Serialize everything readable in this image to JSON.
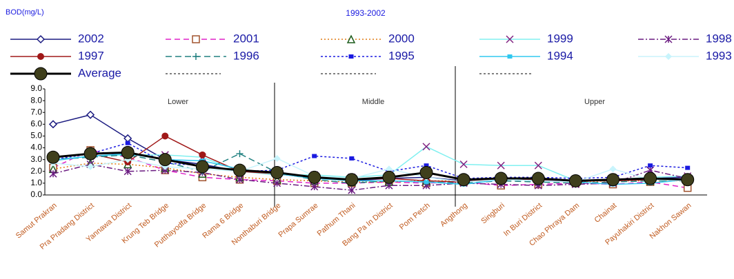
{
  "chart_data": {
    "type": "line",
    "title": "1993-2002",
    "y_label": "BOD(mg/L)",
    "categories": [
      "Samut Prakran",
      "Pra Pradang District",
      "Yannawa District",
      "Krung Teb Bridge",
      "Putthayodfa Bridge",
      "Rama 6 Bridge",
      "Nonthaburi Bridge",
      "Prapa Sumrae",
      "Pathum Thani",
      "Bang Pa In District",
      "Pom Petch",
      "Angthong",
      "Singburi",
      "In Buri District",
      "Chao Phraya Dam",
      "Chainat",
      "Payuhakiri District",
      "Nakhon Sawan"
    ],
    "regions": [
      "Lower",
      "Middle",
      "Upper"
    ],
    "ylim": [
      0,
      9
    ],
    "yticks": [
      {
        "value": 0,
        "label": "0.0"
      },
      {
        "value": 1,
        "label": "1.0"
      },
      {
        "value": 2,
        "label": "2.0"
      },
      {
        "value": 3,
        "label": "3.0"
      },
      {
        "value": 4,
        "label": "4.0"
      },
      {
        "value": 5,
        "label": "5.0"
      },
      {
        "value": 6,
        "label": "6.0"
      },
      {
        "value": 7,
        "label": "7.0"
      },
      {
        "value": 8,
        "label": "8.0"
      },
      {
        "value": 9,
        "label": "9.0"
      }
    ],
    "series": [
      {
        "name": "2002",
        "color": "#1a1a80",
        "dash": "",
        "marker": "diamond",
        "values": [
          6.0,
          6.8,
          4.8,
          3.0,
          2.6,
          2.0,
          1.8,
          1.5,
          1.2,
          1.4,
          1.5,
          1.2,
          1.4,
          1.3,
          1.1,
          1.3,
          1.4,
          1.5
        ]
      },
      {
        "name": "2001",
        "color": "#e020c8",
        "dash": "8 5",
        "marker": "square",
        "values": [
          2.3,
          3.8,
          3.2,
          2.1,
          1.5,
          1.3,
          1.2,
          1.0,
          1.0,
          1.1,
          1.0,
          1.1,
          0.8,
          0.9,
          1.0,
          0.9,
          1.1,
          0.6
        ]
      },
      {
        "name": "2000",
        "color": "#e07a10",
        "dash": "2 3",
        "marker": "triangle",
        "values": [
          2.2,
          2.7,
          2.6,
          2.3,
          1.8,
          1.5,
          1.3,
          1.2,
          1.1,
          1.1,
          1.2,
          1.2,
          1.3,
          1.2,
          1.1,
          1.2,
          1.2,
          1.2
        ]
      },
      {
        "name": "1999",
        "color": "#80f0f0",
        "dash": "",
        "marker": "x",
        "values": [
          3.0,
          3.3,
          3.4,
          3.4,
          3.2,
          2.0,
          1.7,
          1.7,
          1.5,
          1.7,
          4.1,
          2.6,
          2.5,
          2.5,
          1.2,
          1.3,
          1.5,
          1.6
        ]
      },
      {
        "name": "1998",
        "color": "#6a1a80",
        "dash": "8 3 2 3",
        "marker": "star",
        "values": [
          1.8,
          2.6,
          2.0,
          2.1,
          1.9,
          1.3,
          1.0,
          0.7,
          0.4,
          0.8,
          0.8,
          1.0,
          0.9,
          0.8,
          0.9,
          1.0,
          2.1,
          1.4
        ]
      },
      {
        "name": "1997",
        "color": "#a01818",
        "dash": "",
        "marker": "circle",
        "values": [
          3.2,
          3.5,
          2.8,
          5.0,
          3.4,
          2.0,
          1.8,
          1.4,
          1.3,
          1.4,
          1.2,
          1.1,
          1.4,
          1.3,
          1.2,
          1.2,
          1.3,
          1.3
        ]
      },
      {
        "name": "1996",
        "color": "#208080",
        "dash": "9 5",
        "marker": "plus",
        "values": [
          3.0,
          3.2,
          3.4,
          2.8,
          2.0,
          3.5,
          1.9,
          1.3,
          1.0,
          1.2,
          1.1,
          1.0,
          1.2,
          1.1,
          1.0,
          1.1,
          1.2,
          1.2
        ]
      },
      {
        "name": "1995",
        "color": "#1a1ae0",
        "dash": "3 3",
        "marker": "fsquare",
        "values": [
          3.0,
          3.5,
          4.4,
          2.7,
          2.5,
          2.0,
          2.1,
          3.3,
          3.1,
          2.0,
          2.5,
          1.4,
          1.5,
          1.5,
          1.4,
          1.5,
          2.5,
          2.3
        ]
      },
      {
        "name": "1994",
        "color": "#30c8f0",
        "dash": "",
        "marker": "fsquare",
        "values": [
          2.9,
          3.3,
          3.5,
          3.0,
          2.9,
          2.2,
          1.8,
          1.4,
          1.2,
          1.2,
          1.1,
          0.9,
          1.3,
          1.2,
          1.1,
          0.9,
          1.0,
          1.3
        ]
      },
      {
        "name": "1993",
        "color": "#c8f4fc",
        "dash": "",
        "marker": "fdiamond",
        "values": [
          2.7,
          2.4,
          3.0,
          2.4,
          2.2,
          2.0,
          3.1,
          1.6,
          1.4,
          2.2,
          1.5,
          1.1,
          1.3,
          1.2,
          1.1,
          2.2,
          1.3,
          1.2
        ]
      },
      {
        "name": "Average",
        "color": "#000000",
        "dash": "",
        "marker": "big",
        "values": [
          3.2,
          3.5,
          3.6,
          3.0,
          2.4,
          2.1,
          1.9,
          1.5,
          1.3,
          1.5,
          1.9,
          1.3,
          1.4,
          1.4,
          1.2,
          1.3,
          1.4,
          1.3
        ]
      }
    ]
  }
}
